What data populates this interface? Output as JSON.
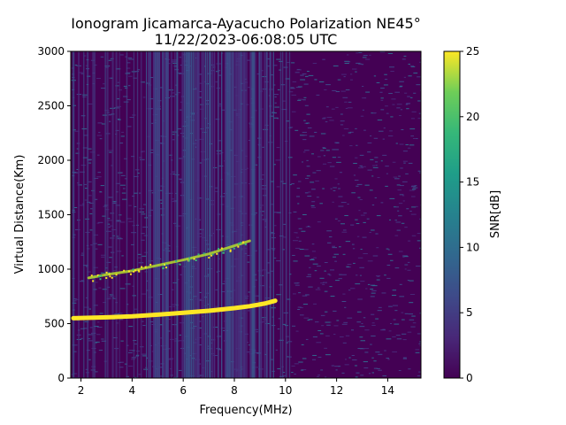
{
  "chart_data": {
    "type": "heatmap",
    "title_line1": "Ionogram Jicamarca-Ayacucho Polarization NE45°",
    "title_line2": "11/22/2023-06:08:05 UTC",
    "xlabel": "Frequency(MHz)",
    "ylabel": "Virtual Distance(Km)",
    "xlim": [
      1.6,
      15.3
    ],
    "ylim": [
      0,
      3000
    ],
    "xticks": [
      2,
      4,
      6,
      8,
      10,
      12,
      14
    ],
    "yticks": [
      0,
      500,
      1000,
      1500,
      2000,
      2500,
      3000
    ],
    "colorbar": {
      "label": "SNR[dB]",
      "range": [
        0,
        25
      ],
      "ticks": [
        0,
        5,
        10,
        15,
        20,
        25
      ],
      "colormap": "viridis"
    },
    "traces": [
      {
        "description": "strong echo trace",
        "snr_db": 25,
        "points": [
          [
            1.7,
            550
          ],
          [
            3,
            558
          ],
          [
            4,
            567
          ],
          [
            5,
            582
          ],
          [
            6,
            600
          ],
          [
            7,
            618
          ],
          [
            8,
            642
          ],
          [
            8.6,
            660
          ],
          [
            9.2,
            685
          ],
          [
            9.6,
            710
          ]
        ]
      },
      {
        "description": "weaker upper trace",
        "snr_db": 20,
        "points": [
          [
            2.3,
            920
          ],
          [
            3,
            950
          ],
          [
            4,
            985
          ],
          [
            5,
            1035
          ],
          [
            6,
            1085
          ],
          [
            7,
            1140
          ],
          [
            7.8,
            1200
          ],
          [
            8.6,
            1260
          ]
        ]
      }
    ],
    "grid": false
  },
  "colors": {
    "background_low": "#440154",
    "band_mid": "#3e4a89",
    "trace_high": "#fde725",
    "trace_mid": "#b5de2b"
  }
}
